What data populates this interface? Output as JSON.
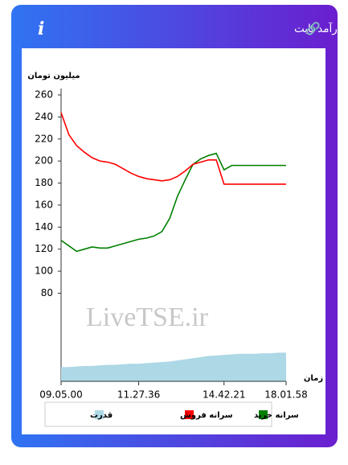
{
  "header": {
    "title": "سرانه ی خرید و فروش حقیقی در صندوق های درآمد ثابت"
  },
  "chart_data": {
    "type": "line",
    "y_label": "میلیون تومان",
    "x_label": "زمان",
    "watermark": "LiveTSE.ir",
    "categories": [
      "09.05.00",
      null,
      null,
      null,
      null,
      null,
      null,
      null,
      null,
      null,
      "11.27.36",
      null,
      null,
      null,
      null,
      null,
      null,
      null,
      null,
      null,
      null,
      "14.42.21",
      null,
      null,
      null,
      null,
      null,
      null,
      null,
      "18.01.58"
    ],
    "series": [
      {
        "name": "سرانه خرید",
        "color": "#008000",
        "kind": "line",
        "values": [
          128,
          123,
          118,
          120,
          122,
          121,
          121,
          123,
          125,
          127,
          129,
          130,
          132,
          136,
          148,
          168,
          183,
          197,
          202,
          205,
          207,
          192,
          196,
          196,
          196,
          196,
          196,
          196,
          196,
          196
        ]
      },
      {
        "name": "سرانه فروش",
        "color": "#ff0000",
        "kind": "line",
        "values": [
          244,
          224,
          214,
          208,
          203,
          200,
          199,
          197,
          193,
          189,
          186,
          184,
          183,
          182,
          183,
          186,
          191,
          197,
          199,
          201,
          201,
          179,
          179,
          179,
          179,
          179,
          179,
          179,
          179,
          179
        ]
      },
      {
        "name": "قدرت",
        "color": "#add8e6",
        "kind": "area",
        "values": [
          13,
          13,
          13.5,
          14,
          14,
          14.5,
          15,
          15,
          15.5,
          16,
          16,
          16.5,
          17,
          17.5,
          18,
          19,
          20,
          21,
          22,
          23,
          23.5,
          24,
          24.5,
          25,
          25,
          25,
          25.5,
          25.5,
          26,
          26
        ]
      }
    ],
    "ylim": [
      0,
      260
    ],
    "yticks": [
      80,
      100,
      120,
      140,
      160,
      180,
      200,
      220,
      240,
      260
    ]
  }
}
